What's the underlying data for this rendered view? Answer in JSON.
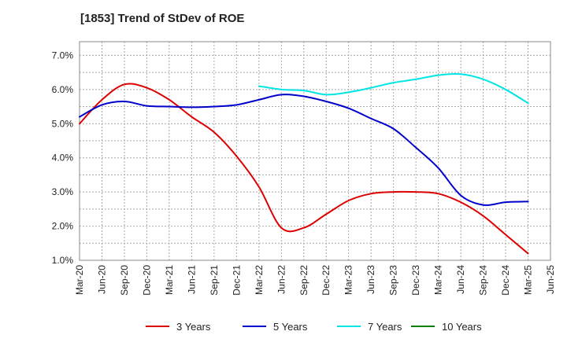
{
  "chart_data": {
    "type": "line",
    "title": "[1853]  Trend of StDev of ROE",
    "xlabel": "",
    "ylabel": "",
    "x_tick_labels": [
      "Mar-20",
      "Jun-20",
      "Sep-20",
      "Dec-20",
      "Mar-21",
      "Jun-21",
      "Sep-21",
      "Dec-21",
      "Mar-22",
      "Jun-22",
      "Sep-22",
      "Dec-22",
      "Mar-23",
      "Jun-23",
      "Sep-23",
      "Dec-23",
      "Mar-24",
      "Jun-24",
      "Sep-24",
      "Dec-24",
      "Mar-25",
      "Jun-25"
    ],
    "y_tick_labels": [
      "1.0%",
      "2.0%",
      "3.0%",
      "4.0%",
      "5.0%",
      "6.0%",
      "7.0%"
    ],
    "ylim": [
      1.0,
      7.4
    ],
    "grid": true,
    "legend_position": "bottom",
    "series": [
      {
        "name": "3 Years",
        "color": "#dd0000",
        "values": [
          5.0,
          5.7,
          6.15,
          6.05,
          5.7,
          5.2,
          4.75,
          4.05,
          3.15,
          1.95,
          1.95,
          2.35,
          2.75,
          2.95,
          3.0,
          3.0,
          2.95,
          2.7,
          2.3,
          1.75,
          1.2,
          null
        ]
      },
      {
        "name": "5 Years",
        "color": "#0000cc",
        "values": [
          5.2,
          5.55,
          5.65,
          5.52,
          5.5,
          5.48,
          5.5,
          5.55,
          5.7,
          5.85,
          5.8,
          5.65,
          5.45,
          5.15,
          4.85,
          4.3,
          3.7,
          2.9,
          2.62,
          2.7,
          2.72,
          null
        ]
      },
      {
        "name": "7 Years",
        "color": "#00e5e5",
        "values": [
          null,
          null,
          null,
          null,
          null,
          null,
          null,
          null,
          6.1,
          6.0,
          5.97,
          5.85,
          5.92,
          6.05,
          6.2,
          6.3,
          6.42,
          6.45,
          6.3,
          6.0,
          5.6,
          null
        ]
      },
      {
        "name": "10 Years",
        "color": "#008000",
        "values": [
          null,
          null,
          null,
          null,
          null,
          null,
          null,
          null,
          null,
          null,
          null,
          null,
          null,
          null,
          null,
          null,
          null,
          null,
          null,
          null,
          null,
          null
        ]
      }
    ]
  }
}
